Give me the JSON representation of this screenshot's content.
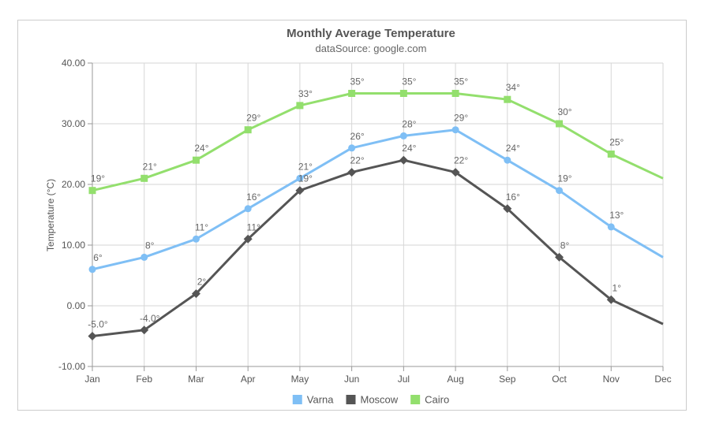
{
  "chart_data": {
    "type": "line",
    "title": "Monthly Average Temperature",
    "subtitle": "dataSource: google.com",
    "xlabel": "",
    "ylabel": "Temperature (°C)",
    "ylim": [
      -10,
      40
    ],
    "yticks": [
      "40.00",
      "30.00",
      "20.00",
      "10.00",
      "0.00",
      "-10.00"
    ],
    "categories": [
      "Jan",
      "Feb",
      "Mar",
      "Apr",
      "May",
      "Jun",
      "Jul",
      "Aug",
      "Sep",
      "Oct",
      "Nov",
      "Dec"
    ],
    "grid": true,
    "legend_position": "bottom",
    "series": [
      {
        "name": "Varna",
        "color": "#7fbff5",
        "marker": "circle",
        "values": [
          6,
          8,
          11,
          16,
          21,
          26,
          28,
          29,
          24,
          19,
          13,
          8
        ],
        "labels": [
          "6°",
          "8°",
          "11°",
          "16°",
          "21°",
          "26°",
          "28°",
          "29°",
          "24°",
          "19°",
          "13°",
          ""
        ]
      },
      {
        "name": "Moscow",
        "color": "#555555",
        "marker": "diamond",
        "values": [
          -5,
          -4,
          2,
          11,
          19,
          22,
          24,
          22,
          16,
          8,
          1,
          -3
        ],
        "labels": [
          "-5.0°",
          "-4.0°",
          "2°",
          "11°",
          "19°",
          "22°",
          "24°",
          "22°",
          "16°",
          "8°",
          "1°",
          ""
        ]
      },
      {
        "name": "Cairo",
        "color": "#93df6d",
        "marker": "square",
        "values": [
          19,
          21,
          24,
          29,
          33,
          35,
          35,
          35,
          34,
          30,
          25,
          21
        ],
        "labels": [
          "19°",
          "21°",
          "24°",
          "29°",
          "33°",
          "35°",
          "35°",
          "35°",
          "34°",
          "30°",
          "25°",
          ""
        ]
      }
    ]
  }
}
